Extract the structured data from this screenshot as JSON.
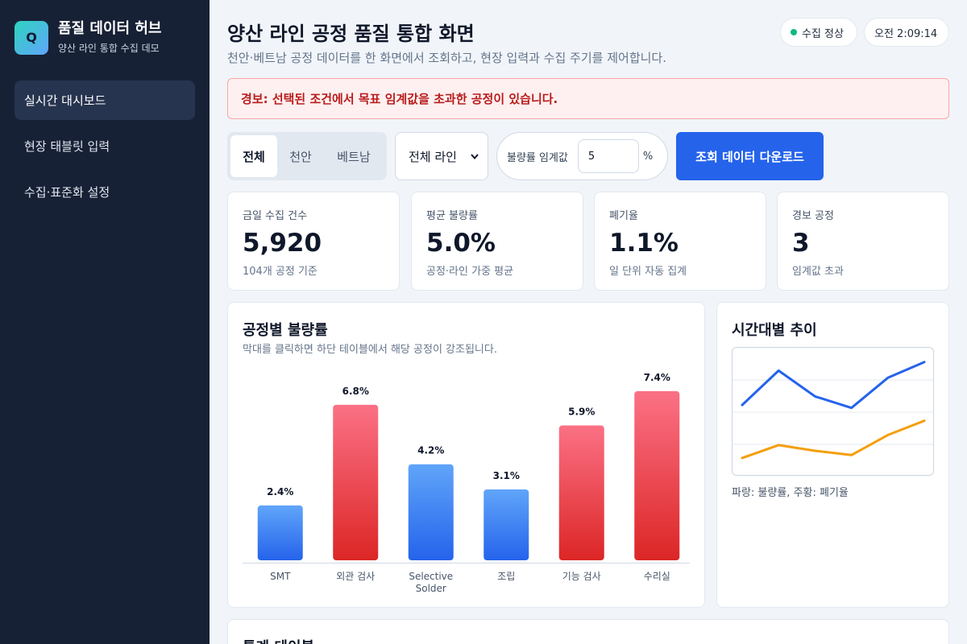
{
  "sidebar": {
    "logo_letter": "Q",
    "title": "품질 데이터 허브",
    "subtitle": "양산 라인 통합 수집 데모",
    "items": [
      {
        "label": "실시간 대시보드",
        "active": true
      },
      {
        "label": "현장 태블릿 입력",
        "active": false
      },
      {
        "label": "수집·표준화 설정",
        "active": false
      }
    ]
  },
  "header": {
    "title": "양산 라인 공정 품질 통합 화면",
    "subtitle": "천안·베트남 공정 데이터를 한 화면에서 조회하고, 현장 입력과 수집 주기를 제어합니다.",
    "status_label": "수집 정상",
    "status_color": "#10b981",
    "time": "오전 2:09:14"
  },
  "alert": {
    "text": "경보: 선택된 조건에서 목표 임계값을 초과한 공정이 있습니다."
  },
  "filters": {
    "sites": [
      "전체",
      "천안",
      "베트남"
    ],
    "selected_site": "전체",
    "line_select": "전체 라인",
    "threshold_label": "불량률 임계값",
    "threshold_value": "5",
    "threshold_unit": "%",
    "download_label": "조회 데이터 다운로드"
  },
  "kpis": [
    {
      "label": "금일 수집 건수",
      "value": "5,920",
      "note": "104개 공정 기준"
    },
    {
      "label": "평균 불량률",
      "value": "5.0%",
      "note": "공정·라인 가중 평균"
    },
    {
      "label": "폐기율",
      "value": "1.1%",
      "note": "일 단위 자동 집계"
    },
    {
      "label": "경보 공정",
      "value": "3",
      "note": "임계값 초과"
    }
  ],
  "bar_panel": {
    "title": "공정별 불량률",
    "subtitle": "막대를 클릭하면 하단 테이블에서 해당 공정이 강조됩니다."
  },
  "trend_panel": {
    "title": "시간대별 추이",
    "legend": "파랑: 불량률, 주황: 폐기율"
  },
  "table_panel": {
    "title": "통계 테이블"
  },
  "colors": {
    "accent": "#2563eb",
    "alert_red": "#b91c1c",
    "bar_normal": "#3b82f6",
    "bar_over": "#ef4444",
    "trend_defect": "#2563eb",
    "trend_scrap": "#f59e0b"
  },
  "chart_data": [
    {
      "type": "bar",
      "categories": [
        "SMT",
        "외관 검사",
        "Selective Solder",
        "조립",
        "기능 검사",
        "수리실"
      ],
      "values": [
        2.4,
        6.8,
        4.2,
        3.1,
        5.9,
        7.4
      ],
      "value_labels": [
        "2.4%",
        "6.8%",
        "4.2%",
        "3.1%",
        "5.9%",
        "7.4%"
      ],
      "threshold": 5,
      "title": "공정별 불량률",
      "ylim": [
        0,
        8
      ]
    },
    {
      "type": "line",
      "x": [
        1,
        2,
        3,
        4,
        5,
        6
      ],
      "series": [
        {
          "name": "불량률",
          "values": [
            5.0,
            7.4,
            5.6,
            4.8,
            6.9,
            8.0
          ]
        },
        {
          "name": "폐기율",
          "values": [
            1.3,
            2.2,
            1.8,
            1.5,
            2.9,
            3.9
          ]
        }
      ],
      "title": "시간대별 추이",
      "ylim": [
        0,
        9
      ],
      "grid": true
    }
  ]
}
